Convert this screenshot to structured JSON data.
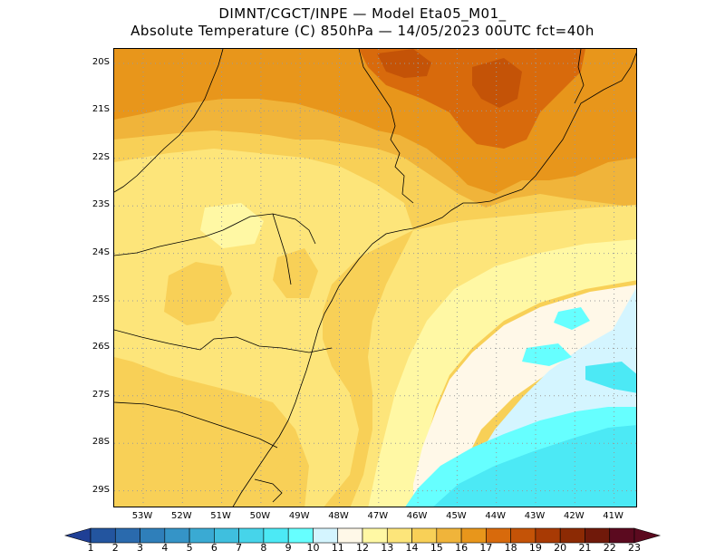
{
  "title": {
    "line1": "DIMNT/CGCT/INPE —  Model Eta05_M01_",
    "line2": "Absolute Temperature (C) 850hPa —  14/05/2023 00UTC fct=40h"
  },
  "map": {
    "lat_labels": [
      "20S",
      "21S",
      "22S",
      "23S",
      "24S",
      "25S",
      "26S",
      "27S",
      "28S",
      "29S"
    ],
    "lon_labels": [
      "53W",
      "52W",
      "51W",
      "50W",
      "49W",
      "48W",
      "47W",
      "46W",
      "45W",
      "44W",
      "43W",
      "42W",
      "41W"
    ],
    "lon_range": [
      -53.7,
      -40.5
    ],
    "lat_range": [
      -29.45,
      -19.8
    ],
    "grid": true,
    "gridline_style": "dotted"
  },
  "colorbar": {
    "labels": [
      "1",
      "2",
      "3",
      "4",
      "5",
      "6",
      "7",
      "8",
      "9",
      "10",
      "11",
      "12",
      "13",
      "14",
      "15",
      "16",
      "17",
      "18",
      "19",
      "20",
      "21",
      "22",
      "23"
    ],
    "colors": [
      "#1f3f95",
      "#23559f",
      "#2a6aad",
      "#2f7fba",
      "#3594c7",
      "#3aaad3",
      "#3fbfde",
      "#46d4ea",
      "#4ce9f5",
      "#66ffff",
      "#d4f5ff",
      "#fff8e8",
      "#fff8a4",
      "#fde57a",
      "#f8d057",
      "#f0b43a",
      "#e8961b",
      "#d86a0c",
      "#c45307",
      "#a83a04",
      "#8c2a04",
      "#70190a",
      "#5b0a1f"
    ]
  },
  "field": {
    "description_units": "C",
    "colors": {
      "t11": "#d4f5ff",
      "t12": "#fff8e8",
      "t13": "#fff8a4",
      "t14": "#fde57a",
      "t15": "#f8d057",
      "t16": "#f0b43a",
      "t17": "#e8961b",
      "t18": "#d86a0c",
      "t19": "#c45307",
      "t10": "#66ffff",
      "t9": "#4ce9f5"
    }
  }
}
